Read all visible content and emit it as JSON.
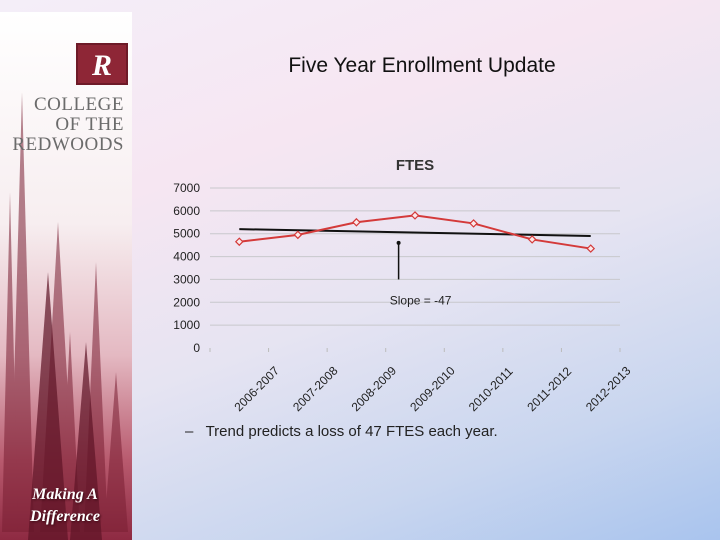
{
  "slide": {
    "title": "Five Year Enrollment Update",
    "bullet_dash": "–",
    "bullet_text": "Trend predicts a loss of 47 FTES each year."
  },
  "sidebar": {
    "college_name_lines": [
      "COLLEGE",
      "OF THE",
      "REDWOODS"
    ],
    "tagline_lines": [
      "Making A",
      "Difference"
    ],
    "logo_icon": "college-logo-r-icon"
  },
  "colors": {
    "series_line": "#d43a3a",
    "trend_line": "#111111",
    "brand": "#8e2636"
  },
  "chart_data": {
    "type": "line",
    "title": "FTES",
    "categories": [
      "2006-2007",
      "2007-2008",
      "2008-2009",
      "2009-2010",
      "2010-2011",
      "2011-2012",
      "2012-2013"
    ],
    "series": [
      {
        "values": [
          4650,
          4950,
          5500,
          5800,
          5450,
          4750,
          4350
        ]
      }
    ],
    "trendline": {
      "start": 5200,
      "end": 4900
    },
    "annotation": "Slope = -47",
    "ylim": [
      0,
      7000
    ],
    "yticks": [
      0,
      1000,
      2000,
      3000,
      4000,
      5000,
      6000,
      7000
    ],
    "grid": true,
    "xlabel": "",
    "ylabel": ""
  }
}
